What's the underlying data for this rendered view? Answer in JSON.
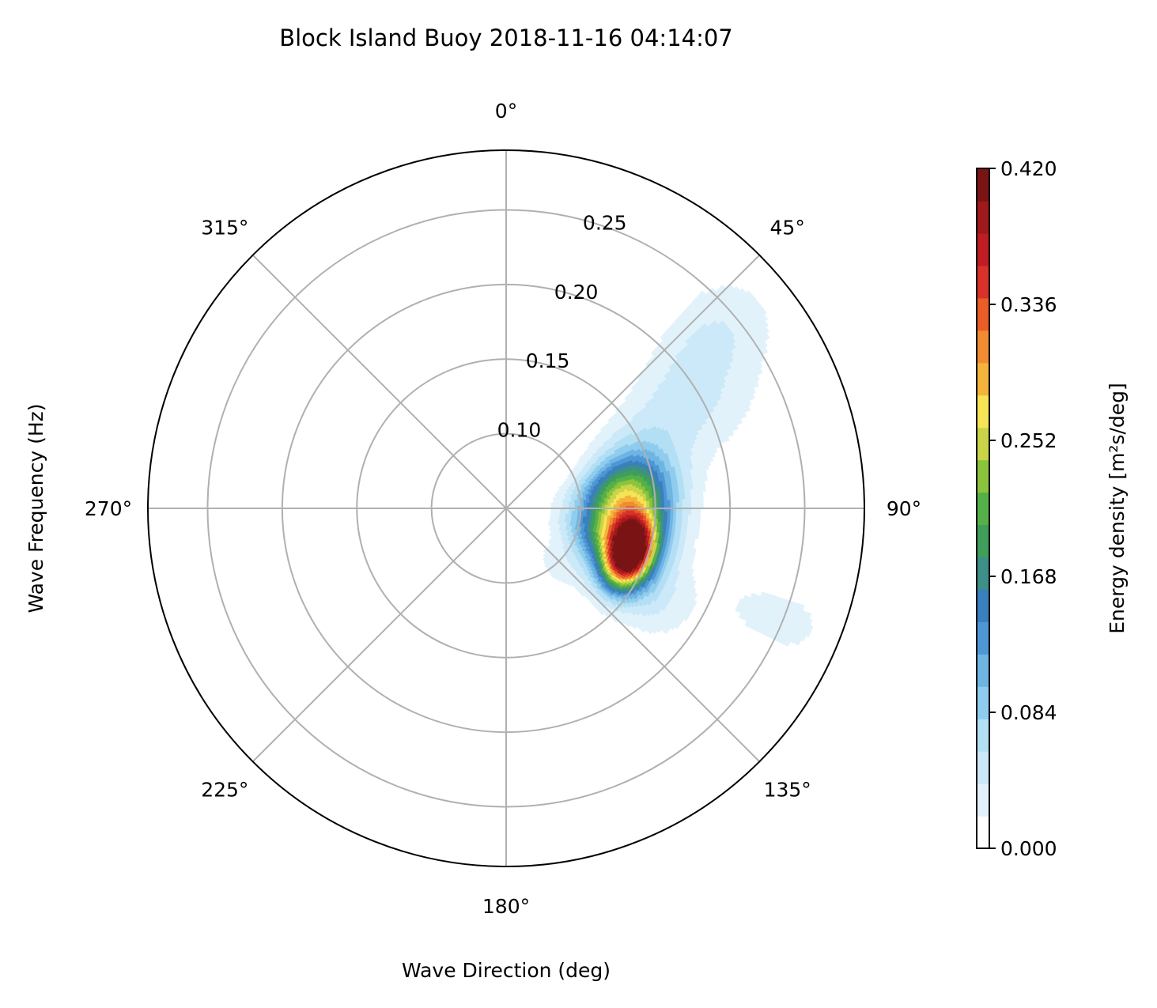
{
  "chart_data": {
    "type": "polar-contour",
    "title": "Block Island Buoy 2018-11-16 04:14:07",
    "xlabel": "Wave Direction (deg)",
    "ylabel": "Wave Frequency (Hz)",
    "theta_ticks": [
      "0°",
      "45°",
      "90°",
      "135°",
      "180°",
      "225°",
      "270°",
      "315°"
    ],
    "theta_tick_values": [
      0,
      45,
      90,
      135,
      180,
      225,
      270,
      315
    ],
    "theta_zero": "N",
    "theta_direction": "clockwise",
    "radial_ticks": [
      "0.10",
      "0.15",
      "0.20",
      "0.25"
    ],
    "radial_tick_values": [
      0.1,
      0.15,
      0.2,
      0.25
    ],
    "rlim": [
      0.05,
      0.29
    ],
    "grid": true,
    "colorbar": {
      "label": "Energy density [m²s/deg]",
      "ticks": [
        "0.000",
        "0.084",
        "0.168",
        "0.252",
        "0.336",
        "0.420"
      ],
      "tick_values": [
        0.0,
        0.084,
        0.168,
        0.252,
        0.336,
        0.42
      ],
      "range": [
        0.0,
        0.42
      ],
      "levels": 20,
      "colors": [
        "#ffffff",
        "#e2f2fb",
        "#cbe9f8",
        "#b2dff4",
        "#8fccee",
        "#6fb5e3",
        "#4d97d4",
        "#3a7fbe",
        "#3d8f88",
        "#3f9e5a",
        "#56b04a",
        "#8cc33c",
        "#c9d448",
        "#f7e356",
        "#f4b33c",
        "#f08c32",
        "#e85d28",
        "#d8322a",
        "#c01c24",
        "#9f1a1a",
        "#7a1414"
      ]
    },
    "peak": {
      "direction_deg": 110,
      "frequency_hz": 0.137,
      "energy": 0.39
    },
    "blobs": [
      {
        "direction_deg": 110,
        "frequency_hz": 0.138,
        "energy": 0.38
      },
      {
        "direction_deg": 104,
        "frequency_hz": 0.128,
        "energy": 0.2
      },
      {
        "direction_deg": 88,
        "frequency_hz": 0.13,
        "energy": 0.14
      },
      {
        "direction_deg": 78,
        "frequency_hz": 0.135,
        "energy": 0.09
      },
      {
        "direction_deg": 60,
        "frequency_hz": 0.185,
        "energy": 0.05
      },
      {
        "direction_deg": 50,
        "frequency_hz": 0.235,
        "energy": 0.035
      },
      {
        "direction_deg": 122,
        "frequency_hz": 0.16,
        "energy": 0.04
      },
      {
        "direction_deg": 112,
        "frequency_hz": 0.245,
        "energy": 0.03
      },
      {
        "direction_deg": 138,
        "frequency_hz": 0.1,
        "energy": 0.025
      }
    ]
  }
}
